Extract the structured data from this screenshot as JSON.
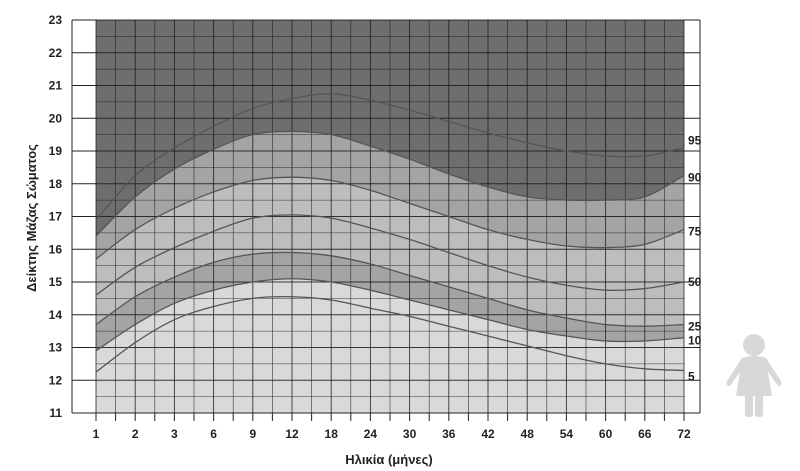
{
  "chart_data": {
    "type": "area",
    "xlabel": "Ηλικία (μήνες)",
    "ylabel": "Δείκτης Μάζας Σώματος",
    "x": [
      "1",
      "2",
      "3",
      "6",
      "9",
      "12",
      "18",
      "24",
      "30",
      "36",
      "42",
      "48",
      "54",
      "60",
      "66",
      "72"
    ],
    "ylim": [
      11,
      23
    ],
    "yticks": [
      "11",
      "12",
      "13",
      "14",
      "15",
      "16",
      "17",
      "18",
      "19",
      "20",
      "21",
      "22",
      "23"
    ],
    "grid": true,
    "series": [
      {
        "name": "5",
        "values": [
          12.25,
          13.15,
          13.85,
          14.25,
          14.5,
          14.55,
          14.45,
          14.2,
          13.95,
          13.65,
          13.35,
          13.05,
          12.75,
          12.5,
          12.35,
          12.3
        ]
      },
      {
        "name": "10",
        "values": [
          12.9,
          13.7,
          14.35,
          14.75,
          15.0,
          15.1,
          15.0,
          14.75,
          14.45,
          14.15,
          13.85,
          13.55,
          13.35,
          13.2,
          13.2,
          13.3
        ]
      },
      {
        "name": "25",
        "values": [
          13.7,
          14.55,
          15.15,
          15.6,
          15.85,
          15.9,
          15.8,
          15.55,
          15.2,
          14.85,
          14.5,
          14.15,
          13.9,
          13.7,
          13.65,
          13.7
        ]
      },
      {
        "name": "50",
        "values": [
          14.6,
          15.45,
          16.05,
          16.55,
          16.95,
          17.05,
          16.95,
          16.65,
          16.3,
          15.9,
          15.5,
          15.15,
          14.9,
          14.75,
          14.8,
          15.0
        ]
      },
      {
        "name": "75",
        "values": [
          15.7,
          16.6,
          17.25,
          17.75,
          18.1,
          18.2,
          18.1,
          17.8,
          17.4,
          17.0,
          16.6,
          16.3,
          16.1,
          16.05,
          16.15,
          16.6
        ]
      },
      {
        "name": "90",
        "values": [
          16.4,
          17.6,
          18.45,
          19.05,
          19.5,
          19.6,
          19.5,
          19.15,
          18.75,
          18.3,
          17.9,
          17.6,
          17.5,
          17.5,
          17.6,
          18.25
        ]
      },
      {
        "name": "95",
        "values": [
          16.9,
          18.25,
          19.1,
          19.75,
          20.3,
          20.6,
          20.75,
          20.55,
          20.25,
          19.9,
          19.55,
          19.25,
          19.0,
          18.85,
          18.85,
          19.1
        ]
      }
    ],
    "colors": {
      "band_top": "#6e6e6e",
      "band_90_top": "#a4a4a4",
      "band_75_90": "#bdbdbd",
      "band_mid": "#a4a4a4",
      "band_10_25": "#bdbdbd",
      "band_bottom": "#d9d9d9",
      "grid": "#1a1a1a",
      "curve": "#555555"
    },
    "icon": "child-figure-icon"
  }
}
